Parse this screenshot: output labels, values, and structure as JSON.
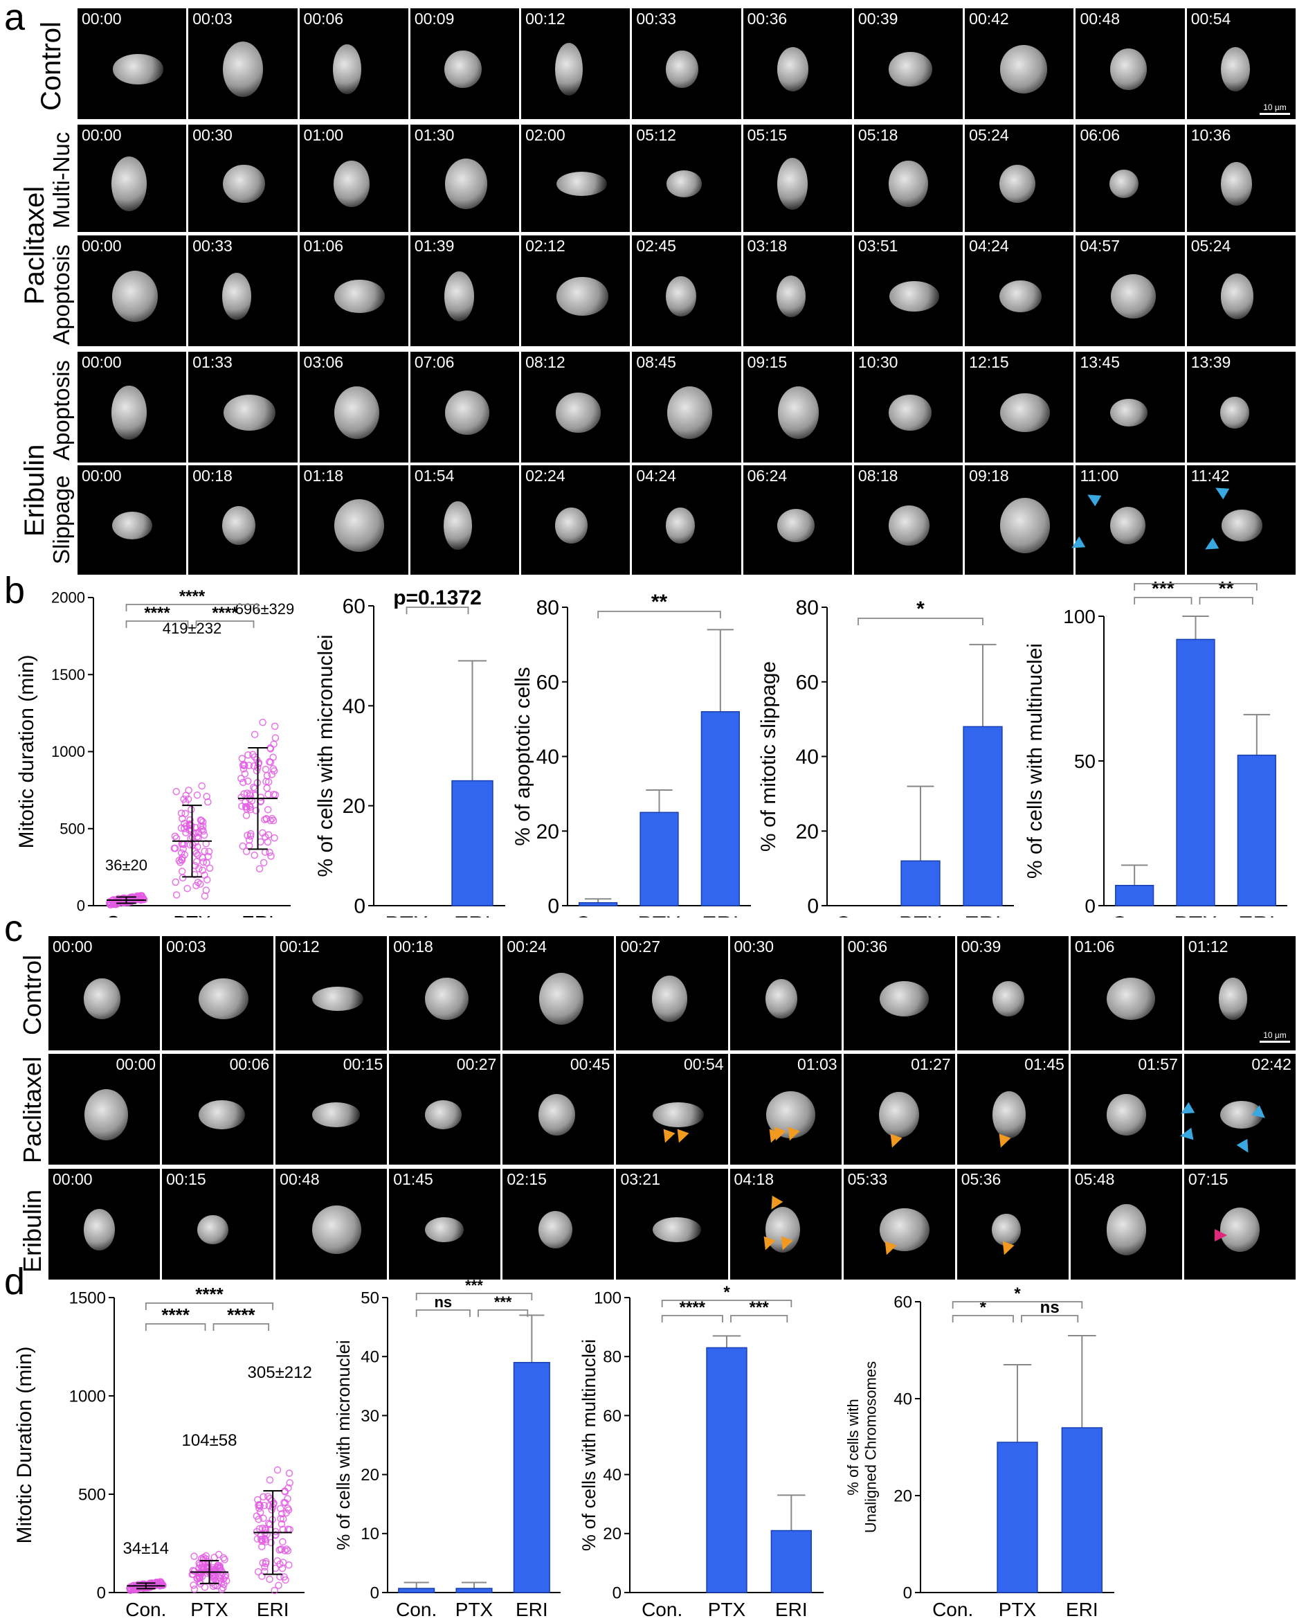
{
  "panel_letters": {
    "a": "a",
    "b": "b",
    "c": "c",
    "d": "d"
  },
  "panel_a": {
    "labels": {
      "control": "Control",
      "paclitaxel": "Paclitaxel",
      "multinuc": "Multi-Nuc",
      "apoptosis": "Apoptosis",
      "eribulin": "Eribulin",
      "eri_apoptosis": "Apoptosis",
      "slippage": "Slippage"
    },
    "rows": [
      {
        "name": "control",
        "times": [
          "00:00",
          "00:03",
          "00:06",
          "00:09",
          "00:12",
          "00:33",
          "00:36",
          "00:39",
          "00:42",
          "00:48",
          "00:54"
        ]
      },
      {
        "name": "paclitaxel-multinuc",
        "times": [
          "00:00",
          "00:30",
          "01:00",
          "01:30",
          "02:00",
          "05:12",
          "05:15",
          "05:18",
          "05:24",
          "06:06",
          "10:36"
        ]
      },
      {
        "name": "paclitaxel-apoptosis",
        "times": [
          "00:00",
          "00:33",
          "01:06",
          "01:39",
          "02:12",
          "02:45",
          "03:18",
          "03:51",
          "04:24",
          "04:57",
          "05:24"
        ]
      },
      {
        "name": "eribulin-apoptosis",
        "times": [
          "00:00",
          "01:33",
          "03:06",
          "07:06",
          "08:12",
          "08:45",
          "09:15",
          "10:30",
          "12:15",
          "13:45",
          "13:39"
        ]
      },
      {
        "name": "eribulin-slippage",
        "times": [
          "00:00",
          "00:18",
          "01:18",
          "01:54",
          "02:24",
          "04:24",
          "06:24",
          "08:18",
          "09:18",
          "11:00",
          "11:42"
        ]
      }
    ],
    "scalebar": "10 µm"
  },
  "panel_c": {
    "labels": {
      "control": "Control",
      "paclitaxel": "Paclitaxel",
      "eribulin": "Eribulin"
    },
    "rows": [
      {
        "name": "control",
        "times": [
          "00:00",
          "00:03",
          "00:12",
          "00:18",
          "00:24",
          "00:27",
          "00:30",
          "00:36",
          "00:39",
          "01:06",
          "01:12"
        ]
      },
      {
        "name": "paclitaxel",
        "times": [
          "00:00",
          "00:06",
          "00:15",
          "00:27",
          "00:45",
          "00:54",
          "01:03",
          "01:27",
          "01:45",
          "01:57",
          "02:42"
        ]
      },
      {
        "name": "eribulin",
        "times": [
          "00:00",
          "00:15",
          "00:48",
          "01:45",
          "02:15",
          "03:21",
          "04:18",
          "05:33",
          "05:36",
          "05:48",
          "07:15"
        ]
      }
    ],
    "scalebar": "10 µm"
  },
  "colors": {
    "bar": "#3366ee",
    "pink": "#e35be3",
    "orange": "#f29a1f",
    "cyan": "#3aa8e0",
    "magenta": "#e0287a"
  },
  "chart_data": [
    {
      "id": "b1",
      "type": "scatter",
      "ylabel": "Mitotic duration (min)",
      "categories": [
        "Con.",
        "PTX",
        "ERI"
      ],
      "ylim": [
        0,
        2000
      ],
      "yticks": [
        "0",
        "500",
        "1000",
        "1500",
        "2000"
      ],
      "means": [
        36,
        419,
        696
      ],
      "sds": [
        20,
        232,
        329
      ],
      "annotations": [
        "36±20",
        "419±232",
        "696±329"
      ],
      "sig": [
        {
          "from": 0,
          "to": 1,
          "label": "****"
        },
        {
          "from": 1,
          "to": 2,
          "label": "****"
        },
        {
          "from": 0,
          "to": 2,
          "label": "****"
        }
      ]
    },
    {
      "id": "b2",
      "type": "bar",
      "ylabel": "% of cells with micronuclei",
      "categories": [
        "PTX",
        "ERI"
      ],
      "values": [
        0,
        25
      ],
      "errors": [
        0,
        24
      ],
      "ylim": [
        0,
        60
      ],
      "yticks": [
        "0",
        "20",
        "40",
        "60"
      ],
      "sig": [
        {
          "from": 0,
          "to": 1,
          "label": "p=0.1372"
        }
      ]
    },
    {
      "id": "b3",
      "type": "bar",
      "ylabel": "% of apoptotic cells",
      "categories": [
        "Con.",
        "PTX",
        "ERI"
      ],
      "values": [
        0.8,
        25,
        52
      ],
      "errors": [
        1,
        6,
        22
      ],
      "ylim": [
        0,
        80
      ],
      "yticks": [
        "0",
        "20",
        "40",
        "60",
        "80"
      ],
      "sig": [
        {
          "from": 0,
          "to": 2,
          "label": "**"
        }
      ]
    },
    {
      "id": "b4",
      "type": "bar",
      "ylabel": "% of mitotic slippage",
      "categories": [
        "Con.",
        "PTX",
        "ERI"
      ],
      "values": [
        0,
        12,
        48
      ],
      "errors": [
        0,
        20,
        22
      ],
      "ylim": [
        0,
        80
      ],
      "yticks": [
        "0",
        "20",
        "40",
        "60",
        "80"
      ],
      "sig": [
        {
          "from": 0,
          "to": 2,
          "label": "*"
        }
      ]
    },
    {
      "id": "b5",
      "type": "bar",
      "ylabel": "% of cells with multinuclei",
      "categories": [
        "Con.",
        "PTX",
        "ERI"
      ],
      "values": [
        7,
        92,
        52
      ],
      "errors": [
        7,
        8,
        14
      ],
      "ylim": [
        0,
        100
      ],
      "yticks": [
        "0",
        "50",
        "100"
      ],
      "sig": [
        {
          "from": 0,
          "to": 1,
          "label": "***"
        },
        {
          "from": 1,
          "to": 2,
          "label": "**"
        },
        {
          "from": 0,
          "to": 2,
          "label": "**"
        }
      ]
    },
    {
      "id": "d1",
      "type": "scatter",
      "ylabel": "Mitotic Duration (min)",
      "categories": [
        "Con.",
        "PTX",
        "ERI"
      ],
      "ylim": [
        0,
        1500
      ],
      "yticks": [
        "0",
        "500",
        "1000",
        "1500"
      ],
      "means": [
        34,
        104,
        305
      ],
      "sds": [
        14,
        58,
        212
      ],
      "annotations": [
        "34±14",
        "104±58",
        "305±212"
      ],
      "sig": [
        {
          "from": 0,
          "to": 1,
          "label": "****"
        },
        {
          "from": 1,
          "to": 2,
          "label": "****"
        },
        {
          "from": 0,
          "to": 2,
          "label": "****"
        }
      ]
    },
    {
      "id": "d2",
      "type": "bar",
      "ylabel": "% of cells with micronuclei",
      "categories": [
        "Con.",
        "PTX",
        "ERI"
      ],
      "values": [
        0.7,
        0.7,
        39
      ],
      "errors": [
        1,
        1,
        8
      ],
      "ylim": [
        0,
        50
      ],
      "yticks": [
        "0",
        "10",
        "20",
        "30",
        "40",
        "50"
      ],
      "sig": [
        {
          "from": 0,
          "to": 1,
          "label": "ns"
        },
        {
          "from": 1,
          "to": 2,
          "label": "***"
        },
        {
          "from": 0,
          "to": 2,
          "label": "***"
        }
      ]
    },
    {
      "id": "d3",
      "type": "bar",
      "ylabel": "% of cells with multinuclei",
      "categories": [
        "Con.",
        "PTX",
        "ERI"
      ],
      "values": [
        0,
        83,
        21
      ],
      "errors": [
        0,
        4,
        12
      ],
      "ylim": [
        0,
        100
      ],
      "yticks": [
        "0",
        "20",
        "40",
        "60",
        "80",
        "100"
      ],
      "sig": [
        {
          "from": 0,
          "to": 1,
          "label": "****"
        },
        {
          "from": 1,
          "to": 2,
          "label": "***"
        },
        {
          "from": 0,
          "to": 2,
          "label": "*"
        }
      ]
    },
    {
      "id": "d4",
      "type": "bar",
      "ylabel": "% of cells with Unaligned Chromosomes",
      "ylabel_lines": [
        "% of cells with",
        "Unaligned Chromosomes"
      ],
      "categories": [
        "Con.",
        "PTX",
        "ERI"
      ],
      "values": [
        0,
        31,
        34
      ],
      "errors": [
        0,
        16,
        19
      ],
      "ylim": [
        0,
        60
      ],
      "yticks": [
        "0",
        "20",
        "40",
        "60"
      ],
      "sig": [
        {
          "from": 0,
          "to": 1,
          "label": "*"
        },
        {
          "from": 1,
          "to": 2,
          "label": "ns"
        },
        {
          "from": 0,
          "to": 2,
          "label": "*"
        }
      ]
    }
  ]
}
